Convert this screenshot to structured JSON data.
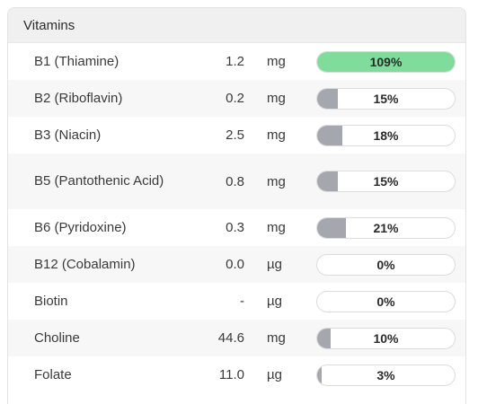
{
  "section": {
    "title": "Vitamins"
  },
  "rows": [
    {
      "name": "B1 (Thiamine)",
      "amount": "1.2",
      "unit": "mg",
      "percent_label": "109%",
      "percent": 109
    },
    {
      "name": "B2 (Riboflavin)",
      "amount": "0.2",
      "unit": "mg",
      "percent_label": "15%",
      "percent": 15
    },
    {
      "name": "B3 (Niacin)",
      "amount": "2.5",
      "unit": "mg",
      "percent_label": "18%",
      "percent": 18
    },
    {
      "name": "B5 (Pantothenic Acid)",
      "amount": "0.8",
      "unit": "mg",
      "percent_label": "15%",
      "percent": 15
    },
    {
      "name": "B6 (Pyridoxine)",
      "amount": "0.3",
      "unit": "mg",
      "percent_label": "21%",
      "percent": 21
    },
    {
      "name": "B12 (Cobalamin)",
      "amount": "0.0",
      "unit": "µg",
      "percent_label": "0%",
      "percent": 0
    },
    {
      "name": "Biotin",
      "amount": "-",
      "unit": "µg",
      "percent_label": "0%",
      "percent": 0
    },
    {
      "name": "Choline",
      "amount": "44.6",
      "unit": "mg",
      "percent_label": "10%",
      "percent": 10
    },
    {
      "name": "Folate",
      "amount": "11.0",
      "unit": "µg",
      "percent_label": "3%",
      "percent": 3
    }
  ],
  "colors": {
    "bar_fill": "#a4a7ae",
    "bar_full": "#7fdc9b"
  }
}
